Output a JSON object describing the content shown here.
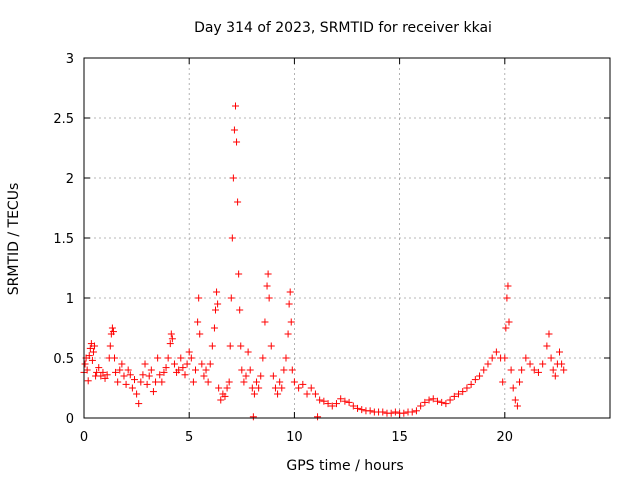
{
  "chart_data": {
    "type": "scatter",
    "title": "Day 314 of 2023, SRMTID for receiver kkai",
    "xlabel": "GPS time / hours",
    "ylabel": "SRMTID / TECUs",
    "xlim": [
      0,
      25
    ],
    "ylim": [
      0,
      3
    ],
    "xticks": [
      0,
      5,
      10,
      15,
      20
    ],
    "yticks": [
      0,
      0.5,
      1,
      1.5,
      2,
      2.5,
      3
    ],
    "xtick_labels": [
      "0",
      "5",
      "10",
      "15",
      "20"
    ],
    "ytick_labels": [
      "0",
      "0.5",
      "1",
      "1.5",
      "2",
      "2.5",
      "3"
    ],
    "grid": true,
    "marker": "+",
    "color": "#ff0000",
    "series": [
      {
        "name": "SRMTID",
        "points": [
          [
            0.0,
            0.38
          ],
          [
            0.05,
            0.45
          ],
          [
            0.1,
            0.5
          ],
          [
            0.15,
            0.4
          ],
          [
            0.2,
            0.31
          ],
          [
            0.25,
            0.52
          ],
          [
            0.3,
            0.58
          ],
          [
            0.35,
            0.62
          ],
          [
            0.4,
            0.48
          ],
          [
            0.45,
            0.55
          ],
          [
            0.5,
            0.6
          ],
          [
            0.55,
            0.35
          ],
          [
            0.6,
            0.38
          ],
          [
            0.7,
            0.42
          ],
          [
            0.8,
            0.35
          ],
          [
            0.9,
            0.38
          ],
          [
            1.0,
            0.33
          ],
          [
            1.1,
            0.36
          ],
          [
            1.2,
            0.5
          ],
          [
            1.25,
            0.6
          ],
          [
            1.3,
            0.7
          ],
          [
            1.35,
            0.75
          ],
          [
            1.4,
            0.72
          ],
          [
            1.45,
            0.5
          ],
          [
            1.5,
            0.38
          ],
          [
            1.6,
            0.3
          ],
          [
            1.7,
            0.4
          ],
          [
            1.8,
            0.45
          ],
          [
            1.9,
            0.35
          ],
          [
            2.0,
            0.28
          ],
          [
            2.1,
            0.4
          ],
          [
            2.2,
            0.36
          ],
          [
            2.3,
            0.25
          ],
          [
            2.4,
            0.32
          ],
          [
            2.5,
            0.2
          ],
          [
            2.6,
            0.12
          ],
          [
            2.7,
            0.3
          ],
          [
            2.8,
            0.36
          ],
          [
            2.9,
            0.45
          ],
          [
            3.0,
            0.28
          ],
          [
            3.1,
            0.35
          ],
          [
            3.2,
            0.4
          ],
          [
            3.3,
            0.22
          ],
          [
            3.4,
            0.3
          ],
          [
            3.5,
            0.5
          ],
          [
            3.6,
            0.36
          ],
          [
            3.7,
            0.3
          ],
          [
            3.8,
            0.38
          ],
          [
            3.9,
            0.42
          ],
          [
            4.0,
            0.5
          ],
          [
            4.1,
            0.62
          ],
          [
            4.15,
            0.7
          ],
          [
            4.2,
            0.66
          ],
          [
            4.3,
            0.45
          ],
          [
            4.4,
            0.38
          ],
          [
            4.5,
            0.4
          ],
          [
            4.6,
            0.5
          ],
          [
            4.7,
            0.42
          ],
          [
            4.8,
            0.36
          ],
          [
            4.9,
            0.45
          ],
          [
            5.0,
            0.55
          ],
          [
            5.1,
            0.5
          ],
          [
            5.2,
            0.3
          ],
          [
            5.3,
            0.4
          ],
          [
            5.4,
            0.8
          ],
          [
            5.45,
            1.0
          ],
          [
            5.5,
            0.7
          ],
          [
            5.6,
            0.45
          ],
          [
            5.7,
            0.35
          ],
          [
            5.8,
            0.4
          ],
          [
            5.9,
            0.3
          ],
          [
            6.0,
            0.45
          ],
          [
            6.1,
            0.6
          ],
          [
            6.2,
            0.75
          ],
          [
            6.25,
            0.9
          ],
          [
            6.3,
            1.05
          ],
          [
            6.35,
            0.95
          ],
          [
            6.4,
            0.25
          ],
          [
            6.5,
            0.15
          ],
          [
            6.6,
            0.2
          ],
          [
            6.7,
            0.18
          ],
          [
            6.8,
            0.25
          ],
          [
            6.9,
            0.3
          ],
          [
            6.95,
            0.6
          ],
          [
            7.0,
            1.0
          ],
          [
            7.05,
            1.5
          ],
          [
            7.1,
            2.0
          ],
          [
            7.15,
            2.4
          ],
          [
            7.2,
            2.6
          ],
          [
            7.25,
            2.3
          ],
          [
            7.3,
            1.8
          ],
          [
            7.35,
            1.2
          ],
          [
            7.4,
            0.9
          ],
          [
            7.45,
            0.6
          ],
          [
            7.5,
            0.4
          ],
          [
            7.6,
            0.3
          ],
          [
            7.7,
            0.35
          ],
          [
            7.8,
            0.55
          ],
          [
            7.9,
            0.4
          ],
          [
            8.0,
            0.25
          ],
          [
            8.05,
            0.01
          ],
          [
            8.1,
            0.2
          ],
          [
            8.2,
            0.3
          ],
          [
            8.3,
            0.25
          ],
          [
            8.4,
            0.35
          ],
          [
            8.5,
            0.5
          ],
          [
            8.6,
            0.8
          ],
          [
            8.7,
            1.1
          ],
          [
            8.75,
            1.2
          ],
          [
            8.8,
            1.0
          ],
          [
            8.9,
            0.6
          ],
          [
            9.0,
            0.35
          ],
          [
            9.1,
            0.25
          ],
          [
            9.2,
            0.2
          ],
          [
            9.3,
            0.3
          ],
          [
            9.4,
            0.25
          ],
          [
            9.5,
            0.4
          ],
          [
            9.6,
            0.5
          ],
          [
            9.7,
            0.7
          ],
          [
            9.75,
            0.95
          ],
          [
            9.8,
            1.05
          ],
          [
            9.85,
            0.8
          ],
          [
            9.9,
            0.4
          ],
          [
            10.0,
            0.3
          ],
          [
            10.2,
            0.25
          ],
          [
            10.4,
            0.28
          ],
          [
            10.6,
            0.2
          ],
          [
            10.8,
            0.25
          ],
          [
            11.0,
            0.2
          ],
          [
            11.1,
            0.01
          ],
          [
            11.2,
            0.15
          ],
          [
            11.4,
            0.14
          ],
          [
            11.6,
            0.12
          ],
          [
            11.8,
            0.1
          ],
          [
            12.0,
            0.12
          ],
          [
            12.2,
            0.16
          ],
          [
            12.4,
            0.14
          ],
          [
            12.6,
            0.13
          ],
          [
            12.8,
            0.1
          ],
          [
            13.0,
            0.08
          ],
          [
            13.2,
            0.07
          ],
          [
            13.4,
            0.06
          ],
          [
            13.6,
            0.06
          ],
          [
            13.8,
            0.05
          ],
          [
            14.0,
            0.05
          ],
          [
            14.2,
            0.05
          ],
          [
            14.4,
            0.04
          ],
          [
            14.6,
            0.04
          ],
          [
            14.8,
            0.05
          ],
          [
            15.0,
            0.04
          ],
          [
            15.2,
            0.04
          ],
          [
            15.4,
            0.05
          ],
          [
            15.6,
            0.05
          ],
          [
            15.8,
            0.06
          ],
          [
            16.0,
            0.1
          ],
          [
            16.2,
            0.13
          ],
          [
            16.4,
            0.15
          ],
          [
            16.6,
            0.16
          ],
          [
            16.8,
            0.14
          ],
          [
            17.0,
            0.13
          ],
          [
            17.2,
            0.12
          ],
          [
            17.4,
            0.15
          ],
          [
            17.6,
            0.18
          ],
          [
            17.8,
            0.2
          ],
          [
            18.0,
            0.22
          ],
          [
            18.2,
            0.25
          ],
          [
            18.4,
            0.28
          ],
          [
            18.6,
            0.32
          ],
          [
            18.8,
            0.35
          ],
          [
            19.0,
            0.4
          ],
          [
            19.2,
            0.45
          ],
          [
            19.4,
            0.5
          ],
          [
            19.6,
            0.55
          ],
          [
            19.8,
            0.5
          ],
          [
            19.9,
            0.3
          ],
          [
            20.0,
            0.5
          ],
          [
            20.05,
            0.75
          ],
          [
            20.1,
            1.0
          ],
          [
            20.15,
            1.1
          ],
          [
            20.2,
            0.8
          ],
          [
            20.3,
            0.4
          ],
          [
            20.4,
            0.25
          ],
          [
            20.5,
            0.15
          ],
          [
            20.6,
            0.1
          ],
          [
            20.7,
            0.3
          ],
          [
            20.8,
            0.4
          ],
          [
            21.0,
            0.5
          ],
          [
            21.2,
            0.45
          ],
          [
            21.4,
            0.4
          ],
          [
            21.6,
            0.38
          ],
          [
            21.8,
            0.45
          ],
          [
            22.0,
            0.6
          ],
          [
            22.1,
            0.7
          ],
          [
            22.2,
            0.5
          ],
          [
            22.3,
            0.4
          ],
          [
            22.4,
            0.35
          ],
          [
            22.5,
            0.45
          ],
          [
            22.6,
            0.55
          ],
          [
            22.7,
            0.45
          ],
          [
            22.8,
            0.4
          ]
        ]
      }
    ]
  }
}
